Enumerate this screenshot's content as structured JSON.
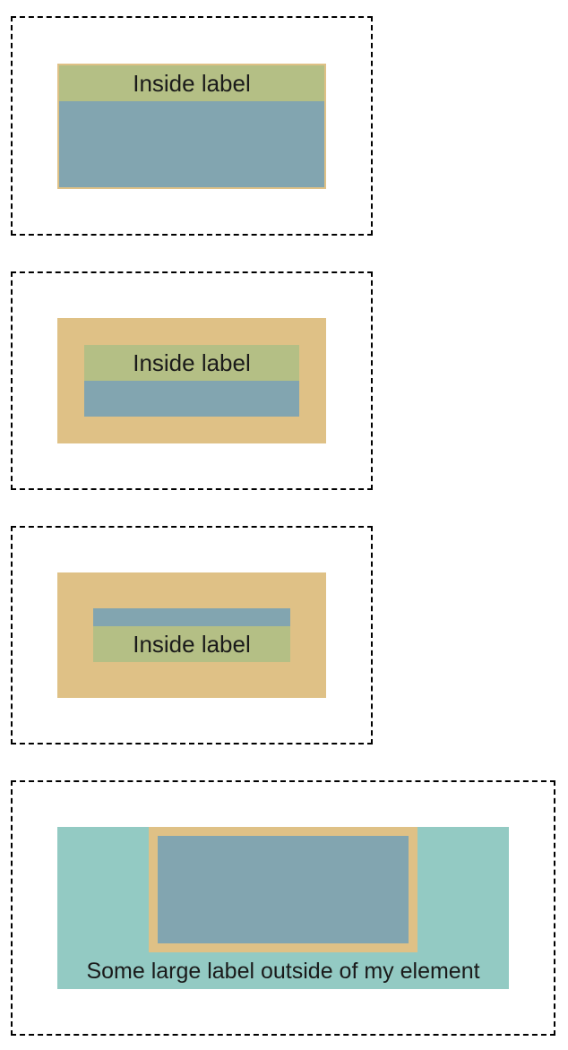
{
  "colors": {
    "border_box": "#dfc186",
    "content": "#82a5b0",
    "label": "#b4bf85",
    "outer_margin_box": "#93cac3",
    "dashed_outline": "#000000",
    "text": "#1a1a1a"
  },
  "demos": [
    {
      "label": "Inside label",
      "label_position": "top"
    },
    {
      "label": "Inside label",
      "label_position": "top"
    },
    {
      "label": "Inside label",
      "label_position": "bottom"
    },
    {
      "label": "Some large label outside of my element",
      "label_position": "outside-bottom"
    }
  ]
}
